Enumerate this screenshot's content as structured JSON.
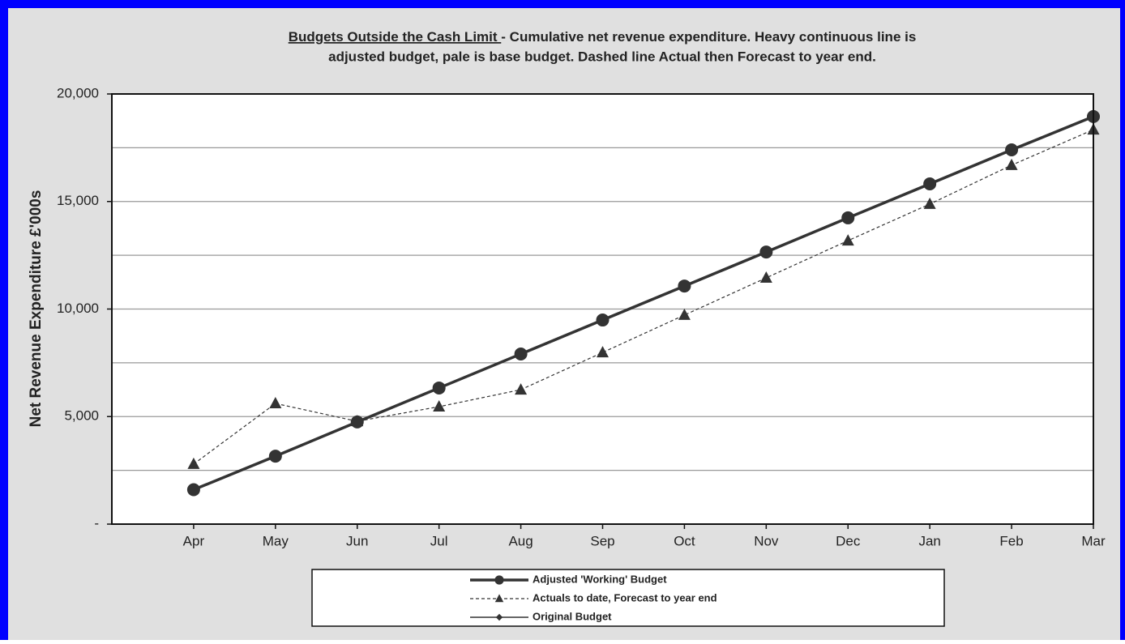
{
  "chart_data": {
    "type": "line",
    "title_underlined": "Budgets Outside the Cash Limit ",
    "title_lines": [
      "- Cumulative net revenue expenditure. Heavy continuous line is",
      "adjusted budget, pale is base budget. Dashed line Actual then Forecast to year end."
    ],
    "y_label": "Net Revenue Expenditure £'000s",
    "categories": [
      "Apr",
      "May",
      "Jun",
      "Jul",
      "Aug",
      "Sep",
      "Oct",
      "Nov",
      "Dec",
      "Jan",
      "Feb",
      "Mar"
    ],
    "series": [
      {
        "name": "Adjusted 'Working' Budget",
        "color": "#333333",
        "marker": "circle",
        "line_style": "heavy",
        "values": [
          1600,
          3160,
          4750,
          6330,
          7910,
          9490,
          11070,
          12650,
          14240,
          15820,
          17400,
          18950
        ]
      },
      {
        "name": "Actuals to date, Forecast to year end",
        "color": "#333333",
        "marker": "triangle",
        "line_style": "dashed",
        "values": [
          2790,
          5610,
          4780,
          5460,
          6250,
          7980,
          9720,
          11450,
          13180,
          14880,
          16690,
          18340
        ]
      },
      {
        "name": "Original Budget",
        "color": "#333333",
        "marker": "diamond",
        "line_style": "thin",
        "values": [
          1600,
          3160,
          4750,
          6330,
          7910,
          9490,
          11070,
          12650,
          14240,
          15820,
          17400,
          18950
        ]
      }
    ],
    "ylim": [
      0,
      20000
    ],
    "yticks": [
      {
        "value": 0,
        "label": "-"
      },
      {
        "value": 5000,
        "label": "5,000"
      },
      {
        "value": 10000,
        "label": "10,000"
      },
      {
        "value": 15000,
        "label": "15,000"
      },
      {
        "value": 20000,
        "label": "20,000"
      }
    ],
    "minor_yticks": [
      2500,
      7500,
      12500,
      17500
    ],
    "grid": true,
    "legend": "bottom"
  }
}
